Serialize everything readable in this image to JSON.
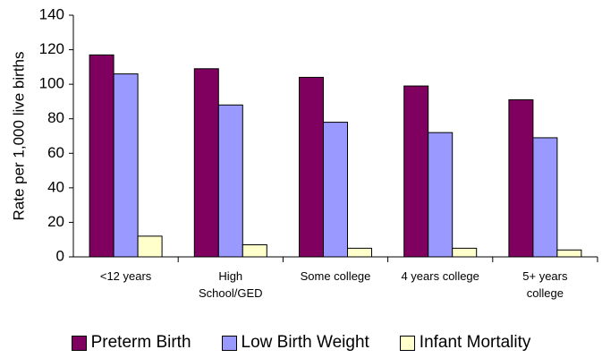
{
  "chart_data": {
    "type": "bar",
    "ylabel": "Rate per 1,000 live births",
    "categories": [
      "<12 years",
      "High School/GED",
      "Some college",
      "4 years college",
      "5+ years college"
    ],
    "series": [
      {
        "name": "Preterm Birth",
        "color": "#800060",
        "values": [
          117,
          109,
          104,
          99,
          91
        ]
      },
      {
        "name": "Low Birth Weight",
        "color": "#9999ff",
        "values": [
          106,
          88,
          78,
          72,
          69
        ]
      },
      {
        "name": "Infant Mortality",
        "color": "#ffffcc",
        "values": [
          12,
          7,
          5,
          5,
          4
        ]
      }
    ],
    "ylim": [
      0,
      140
    ],
    "yticks": [
      0,
      20,
      40,
      60,
      80,
      100,
      120,
      140
    ],
    "grid": false,
    "legend": "bottom"
  }
}
